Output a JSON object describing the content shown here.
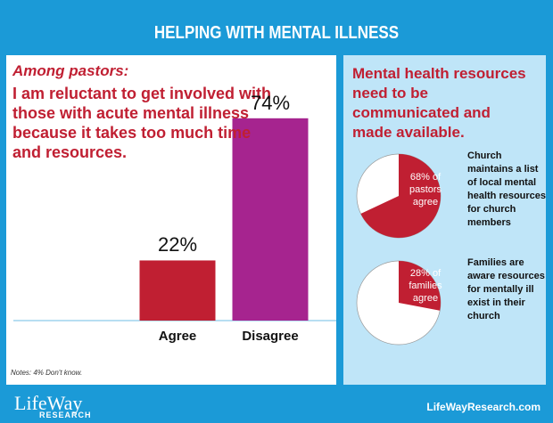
{
  "header": {
    "title": "HELPING WITH MENTAL ILLNESS"
  },
  "chart_data": [
    {
      "type": "bar",
      "subtitle": "Among pastors:",
      "title": "I am reluctant to get involved with those with acute mental illness because it takes too much time and resources.",
      "categories": [
        "Agree",
        "Disagree"
      ],
      "values": [
        22,
        74
      ],
      "value_labels": [
        "22%",
        "74%"
      ],
      "colors": [
        "#c01f32",
        "#a6248f"
      ],
      "note": "Notes: 4% Don't know."
    },
    {
      "type": "pie",
      "title": "Mental health resources need to be communicated and made available.",
      "values": [
        68
      ],
      "value_labels": [
        "68% of pastors agree"
      ],
      "color": "#c01f32",
      "description": "Church maintains a list of local mental health resources for church members"
    },
    {
      "type": "pie",
      "values": [
        28
      ],
      "value_labels": [
        "28% of families agree"
      ],
      "color": "#c01f32",
      "description": "Families are aware resources for mentally ill exist in their church"
    }
  ],
  "footer": {
    "logo": "LifeWay",
    "logo_sub": "RESEARCH",
    "url": "LifeWayResearch.com"
  }
}
